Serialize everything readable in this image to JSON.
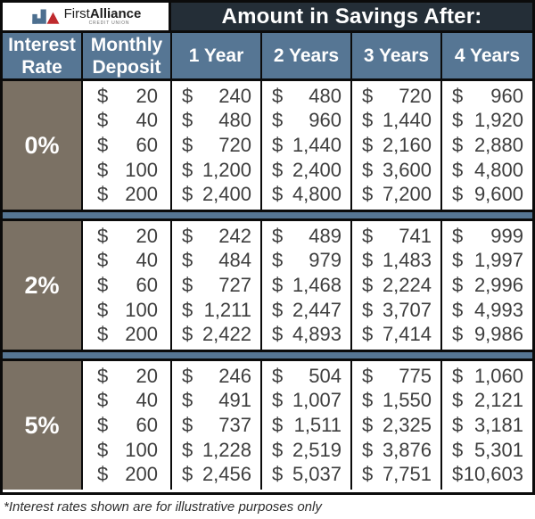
{
  "logo": {
    "name_regular": "First",
    "name_bold": "Alliance",
    "tagline": "CREDIT UNION"
  },
  "title": "Amount in Savings After:",
  "columns": [
    "Interest Rate",
    "Monthly Deposit",
    "1 Year",
    "2 Years",
    "3 Years",
    "4 Years"
  ],
  "currency": "$",
  "footnote": "*Interest rates shown are for illustrative purposes only",
  "colors": {
    "title_bar_bg": "#242e37",
    "column_header_bg": "#567694",
    "rate_cell_bg": "#7b7164",
    "separator_band_bg": "#567694",
    "border": "#0b0b0b",
    "data_text": "#3e3e3e",
    "header_text": "#ffffff",
    "logo_blue": "#4d6f8f",
    "logo_red": "#bf2a2e"
  },
  "chart_data": {
    "type": "table",
    "title": "Amount in Savings After:",
    "columns": [
      "Interest Rate",
      "Monthly Deposit",
      "1 Year",
      "2 Years",
      "3 Years",
      "4 Years"
    ],
    "blocks": [
      {
        "rate": "0%",
        "rows": [
          [
            "20",
            "240",
            "480",
            "720",
            "960"
          ],
          [
            "40",
            "480",
            "960",
            "1,440",
            "1,920"
          ],
          [
            "60",
            "720",
            "1,440",
            "2,160",
            "2,880"
          ],
          [
            "100",
            "1,200",
            "2,400",
            "3,600",
            "4,800"
          ],
          [
            "200",
            "2,400",
            "4,800",
            "7,200",
            "9,600"
          ]
        ]
      },
      {
        "rate": "2%",
        "rows": [
          [
            "20",
            "242",
            "489",
            "741",
            "999"
          ],
          [
            "40",
            "484",
            "979",
            "1,483",
            "1,997"
          ],
          [
            "60",
            "727",
            "1,468",
            "2,224",
            "2,996"
          ],
          [
            "100",
            "1,211",
            "2,447",
            "3,707",
            "4,993"
          ],
          [
            "200",
            "2,422",
            "4,893",
            "7,414",
            "9,986"
          ]
        ]
      },
      {
        "rate": "5%",
        "rows": [
          [
            "20",
            "246",
            "504",
            "775",
            "1,060"
          ],
          [
            "40",
            "491",
            "1,007",
            "1,550",
            "2,121"
          ],
          [
            "60",
            "737",
            "1,511",
            "2,325",
            "3,181"
          ],
          [
            "100",
            "1,228",
            "2,519",
            "3,876",
            "5,301"
          ],
          [
            "200",
            "2,456",
            "5,037",
            "7,751",
            "10,603"
          ]
        ]
      }
    ],
    "footnote": "*Interest rates shown are for illustrative purposes only"
  }
}
